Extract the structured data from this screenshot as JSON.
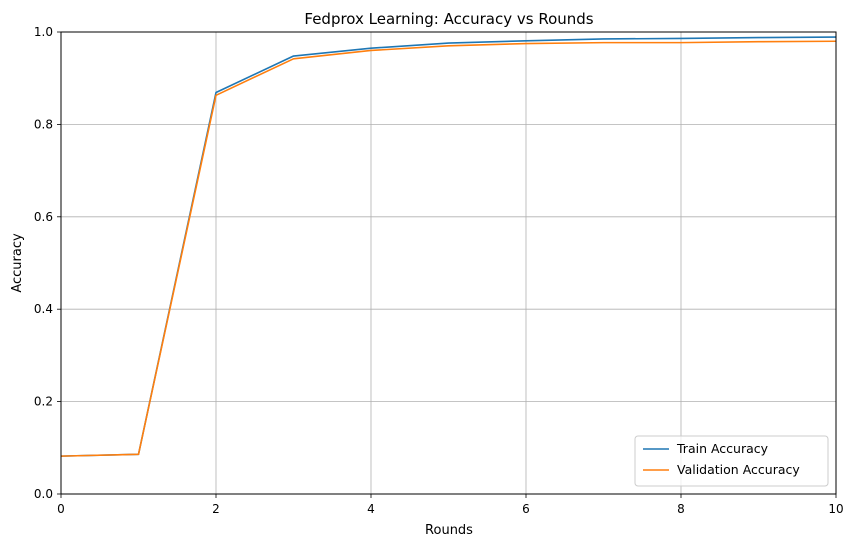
{
  "chart_data": {
    "type": "line",
    "title": "Fedprox Learning: Accuracy vs Rounds",
    "xlabel": "Rounds",
    "ylabel": "Accuracy",
    "xlim": [
      0,
      10
    ],
    "ylim": [
      0,
      1.0
    ],
    "xticks": [
      0,
      2,
      4,
      6,
      8,
      10
    ],
    "yticks": [
      0.0,
      0.2,
      0.4,
      0.6,
      0.8,
      1.0
    ],
    "ytick_labels": [
      "0.0",
      "0.2",
      "0.4",
      "0.6",
      "0.8",
      "1.0"
    ],
    "grid": true,
    "legend_position": "lower-right",
    "x": [
      0,
      1,
      2,
      3,
      4,
      5,
      6,
      7,
      8,
      9,
      10
    ],
    "series": [
      {
        "name": "Train Accuracy",
        "color": "#1f77b4",
        "values": [
          0.082,
          0.086,
          0.869,
          0.948,
          0.965,
          0.976,
          0.981,
          0.985,
          0.986,
          0.988,
          0.989
        ]
      },
      {
        "name": "Validation Accuracy",
        "color": "#ff7f0e",
        "values": [
          0.082,
          0.086,
          0.863,
          0.942,
          0.96,
          0.97,
          0.975,
          0.977,
          0.977,
          0.979,
          0.98
        ]
      }
    ]
  }
}
